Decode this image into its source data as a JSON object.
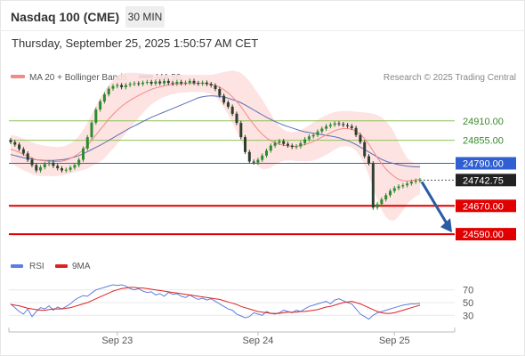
{
  "header": {
    "symbol": "Nasdaq 100 (CME)",
    "timeframe": "30 MIN"
  },
  "datetime": "Thursday, September 25, 2025 1:50:57 AM CET",
  "legend": {
    "ma20": "MA 20 + Bollinger Bands",
    "ma50": "MA 50",
    "credit": "Research © 2025 Trading Central"
  },
  "rsi_legend": {
    "rsi": "RSI",
    "ma9": "9MA"
  },
  "colors": {
    "green_level": "#8fc25a",
    "blue_level": "#2f5fd1",
    "red_level": "#e00000",
    "candle_up": "#2e8b2e",
    "candle_down": "#2f3f2f",
    "band": "#fde0de",
    "ma20": "#f28a86",
    "ma50": "#5a6fb5",
    "rsi": "#5b7fe0",
    "rsi_ma": "#e02020",
    "arrow": "#2a5ba5",
    "current_price_bg": "#222222"
  },
  "chart_data": [
    {
      "type": "candlestick",
      "title": "Nasdaq 100 (CME)",
      "timeframe": "30 MIN",
      "x_tick_labels": [
        "Sep 23",
        "Sep 24",
        "Sep 25"
      ],
      "ylim": [
        24560,
        25000
      ],
      "levels": [
        {
          "value": 24910.0,
          "label": "24910.00",
          "kind": "resistance"
        },
        {
          "value": 24855.0,
          "label": "24855.00",
          "kind": "resistance"
        },
        {
          "value": 24790.0,
          "label": "24790.00",
          "kind": "pivot"
        },
        {
          "value": 24742.75,
          "label": "24742.75",
          "kind": "current"
        },
        {
          "value": 24670.0,
          "label": "24670.00",
          "kind": "support"
        },
        {
          "value": 24590.0,
          "label": "24590.00",
          "kind": "support"
        }
      ],
      "close": [
        24850,
        24843,
        24830,
        24818,
        24800,
        24785,
        24770,
        24779,
        24788,
        24792,
        24783,
        24776,
        24770,
        24772,
        24778,
        24785,
        24800,
        24832,
        24864,
        24905,
        24942,
        24965,
        24985,
        25001,
        25008,
        25011,
        25005,
        25011,
        25014,
        25016,
        25014,
        25018,
        25020,
        25015,
        25021,
        25016,
        25023,
        25017,
        25015,
        25020,
        25016,
        25018,
        25023,
        25017,
        25015,
        25018,
        25014,
        25010,
        25000,
        24981,
        24962,
        24950,
        24930,
        24904,
        24864,
        24822,
        24795,
        24792,
        24800,
        24812,
        24826,
        24840,
        24848,
        24853,
        24845,
        24840,
        24836,
        24838,
        24847,
        24858,
        24866,
        24870,
        24880,
        24888,
        24895,
        24899,
        24903,
        24901,
        24898,
        24895,
        24890,
        24870,
        24850,
        24810,
        24790,
        24665,
        24675,
        24688,
        24700,
        24712,
        24720,
        24725,
        24728,
        24733,
        24738,
        24741,
        24742.75
      ],
      "ma20": [
        24830,
        24826,
        24821,
        24815,
        24810,
        24805,
        24800,
        24798,
        24797,
        24796,
        24795,
        24795,
        24796,
        24799,
        24804,
        24810,
        24818,
        24828,
        24840,
        24855,
        24870,
        24885,
        24900,
        24915,
        24928,
        24940,
        24951,
        24960,
        24968,
        24975,
        24982,
        24988,
        24994,
        24999,
        25003,
        25006,
        25009,
        25011,
        25013,
        25014,
        25015,
        25015,
        25016,
        25016,
        25016,
        25016,
        25015,
        25013,
        25010,
        25005,
        24998,
        24989,
        24978,
        24965,
        24950,
        24933,
        24916,
        24900,
        24885,
        24872,
        24862,
        24854,
        24848,
        24844,
        24841,
        24839,
        24838,
        24838,
        24840,
        24843,
        24847,
        24852,
        24858,
        24864,
        24870,
        24876,
        24882,
        24886,
        24888,
        24888,
        24886,
        24881,
        24872,
        24860,
        24844,
        24825,
        24806,
        24789,
        24774,
        24762,
        24752,
        24745,
        24741,
        24740,
        24741,
        24743,
        24745
      ],
      "ma50": [
        24815,
        24812,
        24809,
        24806,
        24804,
        24802,
        24800,
        24799,
        24798,
        24798,
        24798,
        24799,
        24800,
        24802,
        24805,
        24808,
        24812,
        24817,
        24823,
        24829,
        24835,
        24841,
        24848,
        24855,
        24862,
        24869,
        24876,
        24883,
        24890,
        24896,
        24902,
        24908,
        24914,
        24920,
        24925,
        24930,
        24935,
        24940,
        24945,
        24950,
        24955,
        24960,
        24965,
        24970,
        24975,
        24978,
        24980,
        24981,
        24980,
        24979,
        24977,
        24974,
        24970,
        24966,
        24961,
        24955,
        24948,
        24941,
        24934,
        24927,
        24920,
        24914,
        24908,
        24903,
        24898,
        24894,
        24890,
        24886,
        24882,
        24879,
        24877,
        24875,
        24873,
        24871,
        24869,
        24867,
        24865,
        24862,
        24858,
        24854,
        24849,
        24843,
        24836,
        24829,
        24822,
        24815,
        24808,
        24801,
        24796,
        24792,
        24789,
        24786,
        24784,
        24782,
        24781,
        24780,
        24780
      ],
      "bb_upper": [
        24870,
        24868,
        24865,
        24860,
        24855,
        24850,
        24845,
        24842,
        24840,
        24838,
        24837,
        24836,
        24837,
        24840,
        24846,
        24855,
        24868,
        24885,
        24905,
        24928,
        24952,
        24975,
        24995,
        25012,
        25025,
        25035,
        25042,
        25045,
        25046,
        25046,
        25045,
        25044,
        25043,
        25042,
        25041,
        25040,
        25040,
        25040,
        25040,
        25040,
        25040,
        25040,
        25040,
        25040,
        25040,
        25040,
        25040,
        25040,
        25042,
        25045,
        25048,
        25050,
        25052,
        25050,
        25045,
        25036,
        25022,
        25005,
        24988,
        24970,
        24950,
        24930,
        24910,
        24895,
        24885,
        24880,
        24878,
        24880,
        24884,
        24890,
        24898,
        24906,
        24913,
        24920,
        24926,
        24931,
        24935,
        24937,
        24938,
        24938,
        24937,
        24936,
        24935,
        24934,
        24932,
        24930,
        24926,
        24920,
        24910,
        24895,
        24875,
        24850,
        24825,
        24805,
        24795,
        24790,
        24788
      ],
      "bb_lower": [
        24790,
        24784,
        24777,
        24770,
        24765,
        24760,
        24755,
        24754,
        24754,
        24754,
        24753,
        24754,
        24755,
        24758,
        24762,
        24765,
        24768,
        24771,
        24775,
        24782,
        24788,
        24795,
        24805,
        24818,
        24831,
        24845,
        24860,
        24875,
        24890,
        24904,
        24919,
        24932,
        24945,
        24956,
        24965,
        24972,
        24978,
        24982,
        24986,
        24988,
        24990,
        24990,
        24992,
        24992,
        24992,
        24992,
        24990,
        24986,
        24978,
        24965,
        24948,
        24928,
        24904,
        24880,
        24855,
        24830,
        24810,
        24795,
        24782,
        24774,
        24774,
        24778,
        24786,
        24793,
        24797,
        24798,
        24798,
        24796,
        24796,
        24796,
        24796,
        24798,
        24803,
        24808,
        24814,
        24821,
        24829,
        24835,
        24838,
        24838,
        24835,
        24826,
        24809,
        24786,
        24756,
        24720,
        24686,
        24658,
        24638,
        24629,
        24629,
        24640,
        24657,
        24675,
        24687,
        24696,
        24702
      ]
    },
    {
      "type": "line",
      "title": "RSI",
      "series_names": [
        "RSI",
        "9MA"
      ],
      "yticks": [
        70,
        50,
        30
      ],
      "ylim": [
        15,
        85
      ],
      "rsi": [
        48,
        42,
        36,
        32,
        40,
        28,
        36,
        42,
        40,
        45,
        38,
        43,
        40,
        44,
        48,
        54,
        58,
        61,
        60,
        65,
        70,
        72,
        74,
        76,
        78,
        77,
        78,
        76,
        72,
        70,
        72,
        68,
        66,
        67,
        62,
        64,
        60,
        66,
        63,
        64,
        60,
        58,
        62,
        58,
        55,
        57,
        54,
        56,
        52,
        48,
        44,
        40,
        38,
        32,
        29,
        26,
        28,
        34,
        32,
        30,
        36,
        33,
        32,
        34,
        38,
        36,
        34,
        38,
        36,
        40,
        44,
        46,
        48,
        50,
        52,
        48,
        54,
        56,
        53,
        50,
        48,
        40,
        32,
        28,
        24,
        30,
        34,
        36,
        38,
        40,
        42,
        44,
        46,
        47,
        48,
        48,
        49
      ],
      "ma9": [
        47,
        46,
        45,
        43,
        41,
        40,
        39,
        38,
        38,
        39,
        40,
        40,
        40,
        41,
        42,
        44,
        46,
        48,
        50,
        53,
        56,
        59,
        62,
        65,
        68,
        70,
        72,
        73,
        74,
        74,
        73,
        73,
        72,
        71,
        70,
        69,
        68,
        67,
        66,
        65,
        64,
        63,
        62,
        61,
        60,
        59,
        58,
        57,
        56,
        55,
        53,
        51,
        49,
        47,
        44,
        42,
        40,
        38,
        36,
        35,
        34,
        33,
        33,
        33,
        34,
        35,
        35,
        35,
        36,
        36,
        37,
        38,
        39,
        41,
        43,
        44,
        46,
        48,
        50,
        51,
        52,
        50,
        48,
        45,
        42,
        39,
        36,
        34,
        33,
        33,
        34,
        36,
        38,
        40,
        42,
        44,
        46
      ]
    }
  ]
}
